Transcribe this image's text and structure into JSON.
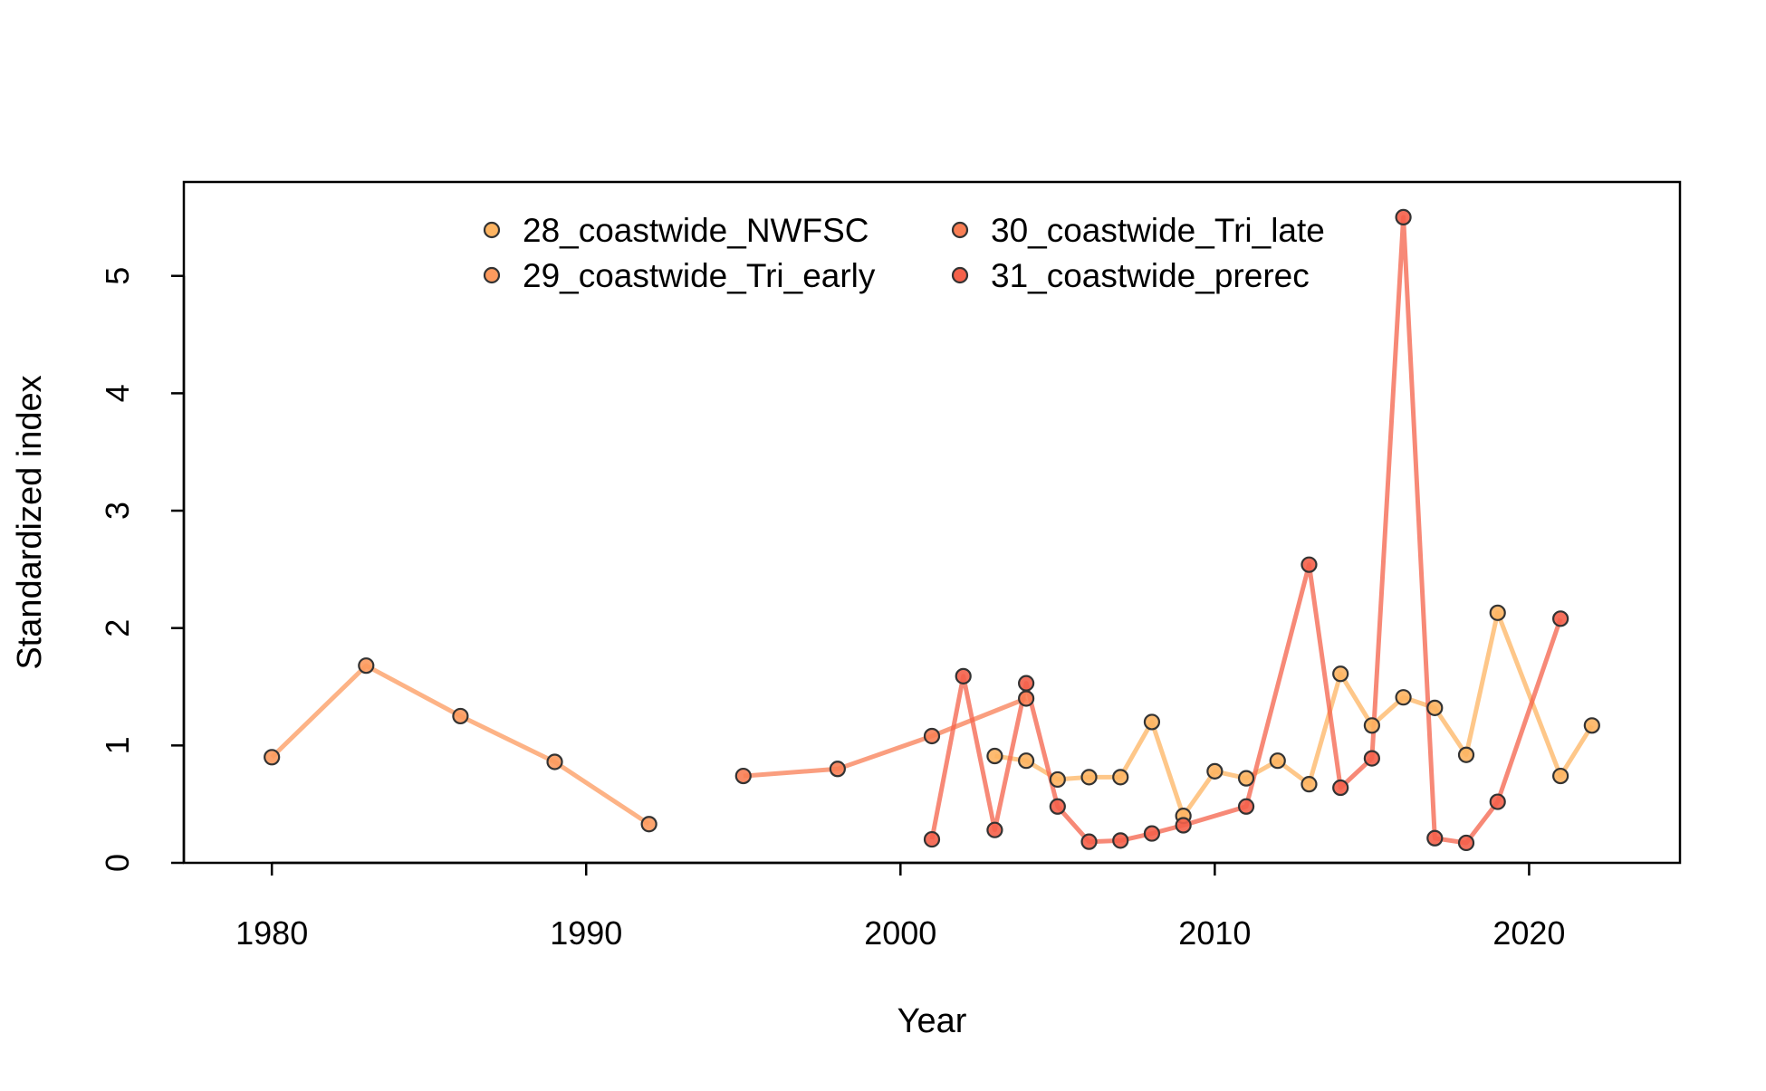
{
  "chart_data": {
    "type": "line",
    "title": "",
    "xlabel": "Year",
    "ylabel": "Standardized index",
    "xlim": [
      1977.2,
      2024.8
    ],
    "ylim": [
      0,
      5.8
    ],
    "xticks": [
      1980,
      1990,
      2000,
      2010,
      2020
    ],
    "yticks": [
      0,
      1,
      2,
      3,
      4,
      5
    ],
    "grid": false,
    "legend_position": "top-center",
    "series": [
      {
        "name": "28_coastwide_NWFSC",
        "color": "#FDB462",
        "x": [
          2003,
          2004,
          2005,
          2006,
          2007,
          2008,
          2009,
          2010,
          2011,
          2012,
          2013,
          2014,
          2015,
          2016,
          2017,
          2018,
          2019,
          2021,
          2022
        ],
        "y": [
          0.91,
          0.87,
          0.71,
          0.73,
          0.73,
          1.2,
          0.4,
          0.78,
          0.72,
          0.87,
          0.67,
          1.61,
          1.17,
          1.41,
          1.32,
          0.92,
          2.13,
          0.74,
          1.17
        ]
      },
      {
        "name": "29_coastwide_Tri_early",
        "color": "#FC9A5E",
        "x": [
          1980,
          1983,
          1986,
          1989,
          1992
        ],
        "y": [
          0.9,
          1.68,
          1.25,
          0.86,
          0.33
        ]
      },
      {
        "name": "30_coastwide_Tri_late",
        "color": "#F87E54",
        "x": [
          1995,
          1998,
          2001,
          2004
        ],
        "y": [
          0.74,
          0.8,
          1.08,
          1.4
        ]
      },
      {
        "name": "31_coastwide_prerec",
        "color": "#F4614A",
        "x": [
          2001,
          2002,
          2003,
          2004,
          2005,
          2006,
          2007,
          2008,
          2009,
          2011,
          2013,
          2014,
          2015,
          2016,
          2017,
          2018,
          2019,
          2021
        ],
        "y": [
          0.2,
          1.59,
          0.28,
          1.53,
          0.48,
          0.18,
          0.19,
          0.25,
          0.32,
          0.48,
          2.54,
          0.64,
          0.89,
          5.5,
          0.21,
          0.17,
          0.52,
          2.08
        ]
      }
    ]
  }
}
